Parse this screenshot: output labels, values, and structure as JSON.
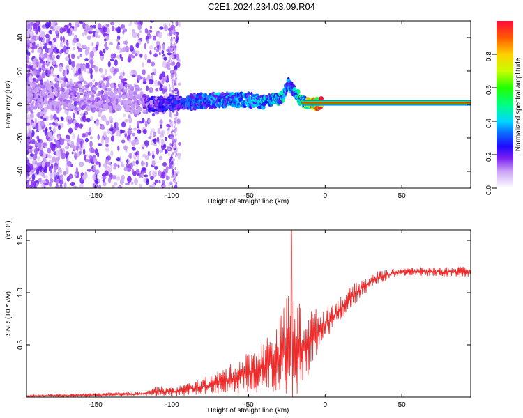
{
  "title": "C2E1.2024.234.03.09.R04",
  "chart_data": [
    {
      "type": "heatmap",
      "name": "spectrogram",
      "xlabel": "Height of straight line (km)",
      "ylabel": "Frequency (Hz)",
      "xlim": [
        -195,
        95
      ],
      "ylim": [
        -50,
        50
      ],
      "xticks": [
        -150,
        -100,
        -50,
        0,
        50
      ],
      "yticks": [
        -40,
        -20,
        0,
        20,
        40
      ],
      "colorbar": {
        "label": "Normalized spectral amplitude",
        "range": [
          0,
          1
        ],
        "ticks": [
          "0.0",
          "0.2",
          "0.4",
          "0.6",
          "0.8"
        ],
        "tick_values": [
          0,
          0.2,
          0.4,
          0.6,
          0.8
        ]
      },
      "signal_track": {
        "x": [
          -195,
          -160,
          -140,
          -120,
          -115,
          -100,
          -80,
          -60,
          -40,
          -28,
          -24,
          -15,
          -10,
          0,
          95
        ],
        "freq": [
          5,
          5,
          4,
          3,
          0,
          1,
          2,
          3,
          2,
          4,
          12,
          2,
          0,
          1,
          1
        ],
        "amplitude": [
          0.1,
          0.12,
          0.12,
          0.1,
          0.2,
          0.25,
          0.3,
          0.35,
          0.35,
          0.4,
          0.3,
          0.5,
          0.7,
          0.95,
          0.95
        ]
      }
    },
    {
      "type": "line",
      "name": "snr",
      "xlabel": "Height of straight line (km)",
      "ylabel": "SNR (10 * v/v)",
      "scale_label": "(x10⁴)",
      "xlim": [
        -195,
        95
      ],
      "ylim": [
        0,
        1.6
      ],
      "xticks": [
        -150,
        -100,
        -50,
        0,
        50
      ],
      "yticks": [
        0.5,
        1.0,
        1.5
      ],
      "ytick_labels": [
        "0.5",
        "1.0",
        "1.5"
      ],
      "color": "#ee2b2b",
      "envelope": {
        "x": [
          -195,
          -150,
          -120,
          -110,
          -100,
          -80,
          -60,
          -40,
          -30,
          -22,
          -15,
          -10,
          0,
          10,
          20,
          35,
          50,
          95
        ],
        "mean": [
          0.01,
          0.02,
          0.03,
          0.06,
          0.05,
          0.1,
          0.18,
          0.3,
          0.4,
          0.5,
          0.45,
          0.55,
          0.7,
          0.85,
          1.0,
          1.15,
          1.2,
          1.2
        ],
        "noise": [
          0.01,
          0.02,
          0.02,
          0.05,
          0.04,
          0.08,
          0.15,
          0.25,
          0.35,
          0.6,
          0.4,
          0.3,
          0.15,
          0.12,
          0.1,
          0.06,
          0.04,
          0.05
        ]
      },
      "peak": {
        "x": -22,
        "y": 1.6
      }
    }
  ]
}
